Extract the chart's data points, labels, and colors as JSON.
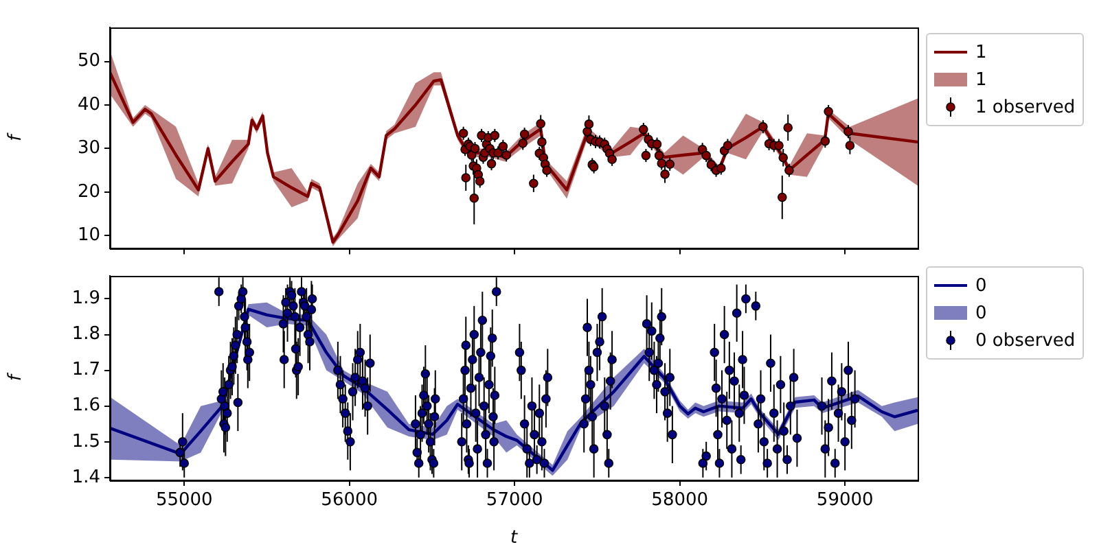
{
  "chart_data": [
    {
      "type": "line",
      "ylabel": "f",
      "xlim": [
        54550,
        59440
      ],
      "xticks": [
        55000,
        56000,
        57000,
        58000,
        59000
      ],
      "ylim": [
        7,
        57.8
      ],
      "yticks": [
        10,
        20,
        30,
        40,
        50
      ],
      "tick_labels": "y",
      "legend": "right",
      "series": [
        {
          "name": "1",
          "type": "line",
          "color": "#800000",
          "marker": "none",
          "x": [
            54550,
            54690,
            54763,
            54800,
            54950,
            55086,
            55144,
            55187,
            55290,
            55388,
            55410,
            55439,
            55475,
            55504,
            55540,
            55650,
            55748,
            55770,
            55820,
            55900,
            55928,
            56050,
            56130,
            56180,
            56223,
            56273,
            56400,
            56511,
            56554,
            56655,
            56719,
            56849,
            56942,
            57043,
            57158,
            57187,
            57316,
            57439,
            57590,
            57700,
            57784,
            57906,
            58020,
            58144,
            58237,
            58288,
            58400,
            58504,
            58626,
            58662,
            58770,
            58878,
            58899,
            59029,
            59440
          ],
          "values": [
            47.5,
            36,
            39,
            38,
            28.5,
            20.5,
            30,
            22.5,
            27,
            31,
            36.5,
            34.5,
            37.5,
            29,
            23.5,
            21,
            19,
            22,
            21,
            8.5,
            10,
            18,
            25.5,
            23.5,
            33,
            34.5,
            40,
            45.5,
            45.8,
            33,
            29,
            29,
            28,
            31.5,
            34.5,
            26.5,
            20.5,
            33.5,
            29,
            31.5,
            33.5,
            28,
            28.5,
            29,
            25,
            30,
            32.5,
            35,
            28,
            25,
            28.5,
            32,
            38,
            33.5,
            31.5
          ],
          "lower": [
            42.5,
            35,
            38,
            37,
            23,
            19,
            29,
            21.5,
            22,
            30,
            35.5,
            33.5,
            36.5,
            28,
            22.5,
            16.5,
            18,
            21,
            20,
            7.5,
            9,
            14,
            24.5,
            22.5,
            32,
            33.5,
            35,
            44.5,
            44.5,
            32,
            28,
            28,
            27,
            30,
            33,
            25.5,
            18.5,
            32,
            28,
            28.5,
            32.5,
            27,
            24,
            28,
            24,
            29,
            27.5,
            34,
            27,
            24,
            23.5,
            31,
            37,
            32,
            21.5
          ],
          "upper": [
            52.5,
            37,
            40,
            39,
            35,
            22,
            31,
            23.5,
            32,
            32,
            37.5,
            35.5,
            38.5,
            30,
            24.5,
            25.5,
            20,
            23,
            22,
            9.5,
            11,
            22,
            26.5,
            24.5,
            34,
            35.5,
            45,
            47.5,
            47.5,
            34,
            30,
            30,
            29,
            33,
            36,
            27.5,
            22.5,
            35,
            30,
            35,
            34.5,
            29,
            33,
            30,
            26,
            31,
            38,
            36,
            29,
            26,
            33.5,
            33,
            39,
            35,
            41.5
          ]
        },
        {
          "name": "1 observed",
          "type": "scatter",
          "color": "#800000",
          "marker": "circle",
          "x": [
            56690,
            56700,
            56705,
            56720,
            56730,
            56740,
            56750,
            56755,
            56760,
            56770,
            56780,
            56790,
            56800,
            56810,
            56820,
            56830,
            56840,
            56850,
            56860,
            56870,
            56880,
            56900,
            56930,
            56950,
            57050,
            57060,
            57115,
            57150,
            57158,
            57165,
            57175,
            57185,
            57195,
            57440,
            57450,
            57460,
            57470,
            57480,
            57490,
            57515,
            57545,
            57560,
            57575,
            57590,
            57780,
            57795,
            57810,
            57830,
            57862,
            57875,
            57890,
            57910,
            57940,
            58137,
            58160,
            58190,
            58220,
            58250,
            58270,
            58290,
            58504,
            58540,
            58570,
            58600,
            58620,
            58626,
            58655,
            58662,
            58880,
            58900,
            59020,
            59030
          ],
          "values": [
            33.5,
            29.8,
            23.3,
            31,
            30.5,
            28.5,
            26,
            18.6,
            30,
            25.5,
            24,
            22.5,
            33,
            28,
            29,
            31,
            32.5,
            30,
            26.5,
            29,
            33,
            29,
            30.5,
            28.5,
            31.2,
            33.3,
            22,
            28.9,
            35.7,
            31.5,
            27.9,
            26.4,
            25,
            33.9,
            35.6,
            32.1,
            26.3,
            25.8,
            31.6,
            31.5,
            31,
            29.9,
            28.9,
            27.5,
            34.4,
            28.4,
            32.1,
            31.1,
            31,
            28.4,
            26.6,
            24.1,
            26.4,
            29.8,
            28.4,
            26.3,
            25,
            25.5,
            29.5,
            30.7,
            35,
            31.1,
            30.7,
            30.7,
            18.8,
            27.9,
            34.8,
            25,
            31.7,
            38.5,
            33.9,
            30.7
          ],
          "errors": [
            1.5,
            1.5,
            3,
            1.5,
            1.5,
            1.5,
            2,
            6,
            1.5,
            2,
            2,
            1.5,
            1.5,
            1.5,
            1.5,
            1.5,
            1.5,
            1.5,
            1.5,
            1.5,
            1.5,
            1.5,
            1.5,
            1.5,
            1.5,
            1.5,
            2,
            1.5,
            2,
            1.5,
            1.5,
            1.5,
            1.5,
            1.5,
            2,
            1.5,
            1.5,
            1.5,
            1.5,
            1.5,
            1.5,
            1.5,
            1.5,
            1.5,
            1.5,
            1.5,
            1.5,
            1.5,
            1.5,
            1.5,
            1.5,
            2,
            1.5,
            1.5,
            1.5,
            1.5,
            1.5,
            1.5,
            1.5,
            1.5,
            1.5,
            1.5,
            1.5,
            1.5,
            5,
            2,
            3,
            1.5,
            1.5,
            1.5,
            1.5,
            2
          ]
        }
      ]
    },
    {
      "type": "line",
      "ylabel": "f",
      "xlabel": "t",
      "xlim": [
        54550,
        59440
      ],
      "xticks": [
        55000,
        56000,
        57000,
        58000,
        59000
      ],
      "ylim": [
        1.392,
        1.965
      ],
      "yticks": [
        1.4,
        1.5,
        1.6,
        1.7,
        1.8,
        1.9
      ],
      "legend": "right",
      "series": [
        {
          "name": "0",
          "type": "line",
          "color": "#000080",
          "marker": "none",
          "x": [
            54552,
            54978,
            55100,
            55230,
            55388,
            55500,
            55620,
            55748,
            55860,
            55964,
            56079,
            56230,
            56360,
            56504,
            56590,
            56655,
            56871,
            56950,
            57014,
            57230,
            57320,
            57403,
            57600,
            57784,
            57906,
            58000,
            58050,
            58094,
            58144,
            58237,
            58381,
            58432,
            58489,
            58597,
            58698,
            58813,
            58863,
            59079,
            59223,
            59300,
            59440
          ],
          "values": [
            1.538,
            1.466,
            1.53,
            1.6,
            1.871,
            1.855,
            1.845,
            1.84,
            1.75,
            1.685,
            1.652,
            1.59,
            1.534,
            1.521,
            1.56,
            1.605,
            1.534,
            1.515,
            1.504,
            1.42,
            1.49,
            1.554,
            1.64,
            1.739,
            1.678,
            1.6,
            1.578,
            1.594,
            1.584,
            1.6,
            1.594,
            1.62,
            1.578,
            1.521,
            1.611,
            1.617,
            1.594,
            1.628,
            1.584,
            1.57,
            1.588
          ],
          "lower": [
            1.45,
            1.445,
            1.47,
            1.585,
            1.855,
            1.82,
            1.83,
            1.825,
            1.7,
            1.67,
            1.635,
            1.54,
            1.515,
            1.505,
            1.52,
            1.59,
            1.515,
            1.47,
            1.49,
            1.405,
            1.45,
            1.54,
            1.6,
            1.72,
            1.665,
            1.585,
            1.565,
            1.58,
            1.57,
            1.585,
            1.58,
            1.605,
            1.565,
            1.505,
            1.595,
            1.6,
            1.58,
            1.61,
            1.57,
            1.53,
            1.55
          ],
          "upper": [
            1.625,
            1.49,
            1.6,
            1.615,
            1.885,
            1.89,
            1.86,
            1.855,
            1.8,
            1.7,
            1.67,
            1.64,
            1.55,
            1.54,
            1.6,
            1.62,
            1.55,
            1.56,
            1.52,
            1.435,
            1.53,
            1.57,
            1.68,
            1.76,
            1.69,
            1.615,
            1.59,
            1.61,
            1.6,
            1.615,
            1.61,
            1.635,
            1.59,
            1.535,
            1.625,
            1.63,
            1.61,
            1.645,
            1.6,
            1.61,
            1.625
          ]
        },
        {
          "name": "0 observed",
          "type": "scatter",
          "color": "#000080",
          "marker": "circle",
          "x": [
            54975,
            54990,
            55000,
            55210,
            55225,
            55235,
            55240,
            55245,
            55250,
            55260,
            55270,
            55280,
            55290,
            55300,
            55310,
            55320,
            55325,
            55330,
            55345,
            55355,
            55365,
            55370,
            55380,
            55385,
            55395,
            55600,
            55605,
            55615,
            55625,
            55640,
            55650,
            55660,
            55670,
            55675,
            55680,
            55690,
            55700,
            55710,
            55722,
            55730,
            55740,
            55750,
            55760,
            55770,
            55775,
            55930,
            55945,
            55960,
            55975,
            55990,
            56005,
            56020,
            56035,
            56050,
            56065,
            56080,
            56095,
            56110,
            56125,
            56400,
            56410,
            56420,
            56430,
            56440,
            56450,
            56460,
            56470,
            56480,
            56490,
            56500,
            56510,
            56515,
            56520,
            56680,
            56690,
            56700,
            56705,
            56710,
            56720,
            56725,
            56735,
            56745,
            56755,
            56765,
            56775,
            56785,
            56795,
            56805,
            56815,
            56825,
            56835,
            56845,
            56855,
            56865,
            56870,
            56875,
            56880,
            56890,
            57030,
            57040,
            57060,
            57075,
            57090,
            57105,
            57120,
            57135,
            57150,
            57165,
            57180,
            57190,
            57200,
            57420,
            57430,
            57440,
            57450,
            57460,
            57470,
            57480,
            57500,
            57515,
            57530,
            57545,
            57560,
            57570,
            57580,
            57590,
            57800,
            57815,
            57830,
            57845,
            57860,
            57870,
            57880,
            57890,
            57910,
            57925,
            57940,
            57955,
            58140,
            58160,
            58210,
            58220,
            58230,
            58240,
            58255,
            58270,
            58285,
            58300,
            58315,
            58330,
            58345,
            58360,
            58370,
            58380,
            58390,
            58400,
            58460,
            58475,
            58490,
            58510,
            58530,
            58550,
            58570,
            58590,
            58610,
            58630,
            58650,
            58670,
            58690,
            58710,
            58860,
            58880,
            58900,
            58920,
            58940,
            58960,
            58980,
            59000,
            59020,
            59040,
            59060
          ],
          "values": [
            1.47,
            1.5,
            1.44,
            1.92,
            1.62,
            1.64,
            1.55,
            1.6,
            1.54,
            1.58,
            1.66,
            1.7,
            1.71,
            1.74,
            1.77,
            1.8,
            1.61,
            1.88,
            1.9,
            1.92,
            1.85,
            1.82,
            1.78,
            1.73,
            1.75,
            1.83,
            1.73,
            1.89,
            1.86,
            1.92,
            1.91,
            1.88,
            1.85,
            1.76,
            1.7,
            1.71,
            1.82,
            1.92,
            1.89,
            1.88,
            1.85,
            1.8,
            1.78,
            1.87,
            1.9,
            1.7,
            1.66,
            1.62,
            1.58,
            1.53,
            1.5,
            1.64,
            1.68,
            1.73,
            1.75,
            1.67,
            1.65,
            1.6,
            1.72,
            1.55,
            1.47,
            1.44,
            1.52,
            1.58,
            1.63,
            1.69,
            1.6,
            1.55,
            1.5,
            1.45,
            1.44,
            1.57,
            1.62,
            1.5,
            1.62,
            1.7,
            1.77,
            1.55,
            1.45,
            1.44,
            1.65,
            1.73,
            1.8,
            1.58,
            1.48,
            1.68,
            1.75,
            1.84,
            1.6,
            1.52,
            1.44,
            1.66,
            1.74,
            1.79,
            1.57,
            1.5,
            1.63,
            1.92,
            1.75,
            1.7,
            1.55,
            1.48,
            1.44,
            1.6,
            1.52,
            1.45,
            1.58,
            1.5,
            1.44,
            1.62,
            1.68,
            1.55,
            1.62,
            1.82,
            1.7,
            1.66,
            1.57,
            1.48,
            1.75,
            1.78,
            1.85,
            1.6,
            1.52,
            1.44,
            1.67,
            1.73,
            1.83,
            1.75,
            1.81,
            1.7,
            1.66,
            1.72,
            1.79,
            1.85,
            1.64,
            1.58,
            1.68,
            1.52,
            1.44,
            1.46,
            1.75,
            1.65,
            1.52,
            1.44,
            1.62,
            1.8,
            1.56,
            1.7,
            1.48,
            1.67,
            1.86,
            1.58,
            1.45,
            1.73,
            1.63,
            1.9,
            1.88,
            1.55,
            1.62,
            1.5,
            1.44,
            1.72,
            1.58,
            1.48,
            1.66,
            1.53,
            1.45,
            1.6,
            1.68,
            1.51,
            1.6,
            1.48,
            1.54,
            1.67,
            1.44,
            1.58,
            1.64,
            1.5,
            1.7,
            1.56,
            1.62
          ],
          "errors": [
            0.04,
            0.08,
            0.04,
            0.04,
            0.08,
            0.08,
            0.08,
            0.08,
            0.08,
            0.08,
            0.08,
            0.08,
            0.08,
            0.08,
            0.08,
            0.08,
            0.08,
            0.04,
            0.04,
            0.04,
            0.08,
            0.08,
            0.08,
            0.08,
            0.08,
            0.08,
            0.08,
            0.04,
            0.08,
            0.04,
            0.04,
            0.04,
            0.08,
            0.08,
            0.08,
            0.08,
            0.08,
            0.04,
            0.04,
            0.04,
            0.08,
            0.08,
            0.08,
            0.08,
            0.04,
            0.08,
            0.08,
            0.08,
            0.08,
            0.08,
            0.08,
            0.08,
            0.08,
            0.08,
            0.08,
            0.08,
            0.08,
            0.08,
            0.08,
            0.08,
            0.04,
            0.04,
            0.08,
            0.08,
            0.08,
            0.08,
            0.08,
            0.08,
            0.08,
            0.04,
            0.04,
            0.08,
            0.08,
            0.08,
            0.08,
            0.08,
            0.08,
            0.08,
            0.04,
            0.04,
            0.08,
            0.08,
            0.08,
            0.08,
            0.08,
            0.08,
            0.08,
            0.08,
            0.08,
            0.08,
            0.04,
            0.08,
            0.08,
            0.08,
            0.08,
            0.08,
            0.08,
            0.04,
            0.08,
            0.08,
            0.08,
            0.08,
            0.04,
            0.08,
            0.08,
            0.04,
            0.08,
            0.08,
            0.04,
            0.08,
            0.08,
            0.08,
            0.08,
            0.08,
            0.08,
            0.08,
            0.08,
            0.08,
            0.08,
            0.08,
            0.08,
            0.08,
            0.08,
            0.04,
            0.08,
            0.08,
            0.08,
            0.08,
            0.08,
            0.08,
            0.08,
            0.08,
            0.08,
            0.08,
            0.08,
            0.08,
            0.08,
            0.08,
            0.04,
            0.04,
            0.08,
            0.08,
            0.08,
            0.04,
            0.08,
            0.08,
            0.08,
            0.08,
            0.08,
            0.08,
            0.08,
            0.08,
            0.04,
            0.08,
            0.08,
            0.04,
            0.04,
            0.08,
            0.08,
            0.08,
            0.04,
            0.08,
            0.08,
            0.08,
            0.08,
            0.08,
            0.04,
            0.08,
            0.08,
            0.08,
            0.08,
            0.08,
            0.08,
            0.08,
            0.04,
            0.08,
            0.08,
            0.08,
            0.08,
            0.08,
            0.08
          ]
        }
      ]
    }
  ]
}
